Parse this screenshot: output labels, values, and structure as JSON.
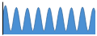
{
  "chart_data": {
    "type": "area",
    "values": [
      50.0,
      62.0,
      74.0,
      83.0,
      88.0,
      87.0,
      80.0,
      68.0,
      53.0,
      38.0,
      24.0,
      14.0,
      10.0,
      12.0,
      20.0,
      32.0,
      46.0,
      59.0,
      70.0,
      78.0,
      82.0,
      81.0,
      75.0,
      65.0,
      52.0,
      38.0,
      25.0,
      15.0,
      10.0,
      11.0,
      18.0,
      30.0,
      44.0,
      57.0,
      68.0,
      76.0,
      80.0,
      79.0,
      73.0,
      63.0,
      50.0,
      36.0,
      23.0,
      14.0,
      10.0,
      12.0,
      20.0,
      32.0,
      46.0,
      59.0,
      70.0,
      78.0,
      82.0,
      81.0,
      75.0,
      64.0,
      51.0,
      37.0,
      24.0,
      15.0,
      10.0,
      12.0,
      19.0,
      31.0,
      45.0,
      58.0,
      69.0,
      77.0,
      81.0,
      80.0,
      74.0,
      63.0,
      50.0,
      36.0,
      23.0,
      14.0,
      10.0,
      12.0,
      20.0,
      33.0,
      47.0,
      60.0,
      71.0,
      79.0,
      83.0,
      81.0,
      75.0,
      64.0,
      51.0,
      37.0,
      24.0,
      14.0,
      10.0,
      11.0,
      19.0,
      31.0,
      45.0,
      58.0,
      69.0,
      77.0,
      81.0,
      80.0,
      74.0,
      63.0,
      49.0,
      35.0,
      22.0,
      13.0,
      10.0,
      12.0,
      20.0,
      33.0,
      47.0,
      60.0,
      71.0,
      79.0,
      83.0,
      82.0,
      76.0,
      65.0,
      52.0,
      38.0,
      25.0,
      15.0,
      10.0,
      11.0,
      18.0,
      30.0,
      44.0,
      57.0,
      68.0,
      76.0,
      80.0,
      80.0,
      74.0,
      64.0
    ],
    "color": "#4a90d4",
    "ylim": [
      0,
      100
    ],
    "tick_labels": false
  }
}
